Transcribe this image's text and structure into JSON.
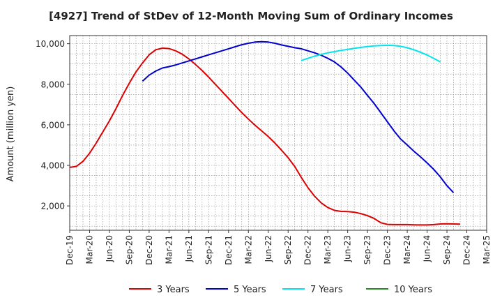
{
  "chart_data": {
    "type": "line",
    "title": "[4927]  Trend of StDev of 12-Month Moving Sum of Ordinary Incomes",
    "xlabel": "",
    "ylabel": "Amount (million yen)",
    "ylim": [
      800,
      10400
    ],
    "yticks": [
      2000,
      4000,
      6000,
      8000,
      10000
    ],
    "ytick_labels": [
      "2,000",
      "4,000",
      "6,000",
      "8,000",
      "10,000"
    ],
    "x_range": [
      "2019-12",
      "2025-03"
    ],
    "xtick_labels": [
      "Dec-19",
      "Mar-20",
      "Jun-20",
      "Sep-20",
      "Dec-20",
      "Mar-21",
      "Jun-21",
      "Sep-21",
      "Dec-21",
      "Mar-22",
      "Jun-22",
      "Sep-22",
      "Dec-22",
      "Mar-23",
      "Jun-23",
      "Sep-23",
      "Dec-23",
      "Mar-24",
      "Jun-24",
      "Sep-24",
      "Dec-24",
      "Mar-25"
    ],
    "grid": true,
    "legend_position": "bottom",
    "series": [
      {
        "name": "3 Years",
        "color": "#dd0000",
        "points": [
          [
            "2019-12",
            3900
          ],
          [
            "2020-01",
            3950
          ],
          [
            "2020-02",
            4200
          ],
          [
            "2020-03",
            4600
          ],
          [
            "2020-04",
            5100
          ],
          [
            "2020-05",
            5650
          ],
          [
            "2020-06",
            6200
          ],
          [
            "2020-07",
            6800
          ],
          [
            "2020-08",
            7450
          ],
          [
            "2020-09",
            8050
          ],
          [
            "2020-10",
            8600
          ],
          [
            "2020-11",
            9050
          ],
          [
            "2020-12",
            9450
          ],
          [
            "2021-01",
            9700
          ],
          [
            "2021-02",
            9780
          ],
          [
            "2021-03",
            9760
          ],
          [
            "2021-04",
            9650
          ],
          [
            "2021-05",
            9480
          ],
          [
            "2021-06",
            9250
          ],
          [
            "2021-07",
            8980
          ],
          [
            "2021-08",
            8680
          ],
          [
            "2021-09",
            8350
          ],
          [
            "2021-10",
            8000
          ],
          [
            "2021-11",
            7650
          ],
          [
            "2021-12",
            7300
          ],
          [
            "2022-01",
            6950
          ],
          [
            "2022-02",
            6600
          ],
          [
            "2022-03",
            6280
          ],
          [
            "2022-04",
            5980
          ],
          [
            "2022-05",
            5700
          ],
          [
            "2022-06",
            5420
          ],
          [
            "2022-07",
            5100
          ],
          [
            "2022-08",
            4750
          ],
          [
            "2022-09",
            4380
          ],
          [
            "2022-10",
            3950
          ],
          [
            "2022-11",
            3400
          ],
          [
            "2022-12",
            2900
          ],
          [
            "2023-01",
            2480
          ],
          [
            "2023-02",
            2150
          ],
          [
            "2023-03",
            1920
          ],
          [
            "2023-04",
            1780
          ],
          [
            "2023-05",
            1730
          ],
          [
            "2023-06",
            1720
          ],
          [
            "2023-07",
            1690
          ],
          [
            "2023-08",
            1620
          ],
          [
            "2023-09",
            1520
          ],
          [
            "2023-10",
            1380
          ],
          [
            "2023-11",
            1170
          ],
          [
            "2023-12",
            1090
          ],
          [
            "2024-01",
            1080
          ],
          [
            "2024-02",
            1080
          ],
          [
            "2024-03",
            1080
          ],
          [
            "2024-04",
            1070
          ],
          [
            "2024-05",
            1060
          ],
          [
            "2024-06",
            1060
          ],
          [
            "2024-07",
            1080
          ],
          [
            "2024-08",
            1110
          ],
          [
            "2024-09",
            1120
          ],
          [
            "2024-10",
            1110
          ],
          [
            "2024-11",
            1100
          ]
        ]
      },
      {
        "name": "5 Years",
        "color": "#0000cc",
        "points": [
          [
            "2020-11",
            8150
          ],
          [
            "2020-12",
            8450
          ],
          [
            "2021-01",
            8650
          ],
          [
            "2021-02",
            8800
          ],
          [
            "2021-03",
            8870
          ],
          [
            "2021-04",
            8950
          ],
          [
            "2021-05",
            9050
          ],
          [
            "2021-06",
            9150
          ],
          [
            "2021-07",
            9250
          ],
          [
            "2021-08",
            9350
          ],
          [
            "2021-09",
            9450
          ],
          [
            "2021-10",
            9550
          ],
          [
            "2021-11",
            9650
          ],
          [
            "2021-12",
            9750
          ],
          [
            "2022-01",
            9850
          ],
          [
            "2022-02",
            9950
          ],
          [
            "2022-03",
            10020
          ],
          [
            "2022-04",
            10080
          ],
          [
            "2022-05",
            10100
          ],
          [
            "2022-06",
            10080
          ],
          [
            "2022-07",
            10020
          ],
          [
            "2022-08",
            9940
          ],
          [
            "2022-09",
            9870
          ],
          [
            "2022-10",
            9800
          ],
          [
            "2022-11",
            9750
          ],
          [
            "2022-12",
            9650
          ],
          [
            "2023-01",
            9550
          ],
          [
            "2023-02",
            9430
          ],
          [
            "2023-03",
            9280
          ],
          [
            "2023-04",
            9100
          ],
          [
            "2023-05",
            8850
          ],
          [
            "2023-06",
            8550
          ],
          [
            "2023-07",
            8200
          ],
          [
            "2023-08",
            7850
          ],
          [
            "2023-09",
            7450
          ],
          [
            "2023-10",
            7050
          ],
          [
            "2023-11",
            6600
          ],
          [
            "2023-12",
            6150
          ],
          [
            "2024-01",
            5700
          ],
          [
            "2024-02",
            5300
          ],
          [
            "2024-03",
            5000
          ],
          [
            "2024-04",
            4700
          ],
          [
            "2024-05",
            4420
          ],
          [
            "2024-06",
            4120
          ],
          [
            "2024-07",
            3800
          ],
          [
            "2024-08",
            3430
          ],
          [
            "2024-09",
            3000
          ],
          [
            "2024-10",
            2650
          ]
        ]
      },
      {
        "name": "7 Years",
        "color": "#00e5ee",
        "points": [
          [
            "2022-11",
            9170
          ],
          [
            "2022-12",
            9280
          ],
          [
            "2023-01",
            9380
          ],
          [
            "2023-02",
            9470
          ],
          [
            "2023-03",
            9550
          ],
          [
            "2023-04",
            9610
          ],
          [
            "2023-05",
            9670
          ],
          [
            "2023-06",
            9720
          ],
          [
            "2023-07",
            9770
          ],
          [
            "2023-08",
            9820
          ],
          [
            "2023-09",
            9860
          ],
          [
            "2023-10",
            9890
          ],
          [
            "2023-11",
            9910
          ],
          [
            "2023-12",
            9920
          ],
          [
            "2024-01",
            9910
          ],
          [
            "2024-02",
            9870
          ],
          [
            "2024-03",
            9800
          ],
          [
            "2024-04",
            9700
          ],
          [
            "2024-05",
            9580
          ],
          [
            "2024-06",
            9440
          ],
          [
            "2024-07",
            9280
          ],
          [
            "2024-08",
            9100
          ]
        ]
      },
      {
        "name": "10 Years",
        "color": "#228b22",
        "points": []
      }
    ]
  }
}
